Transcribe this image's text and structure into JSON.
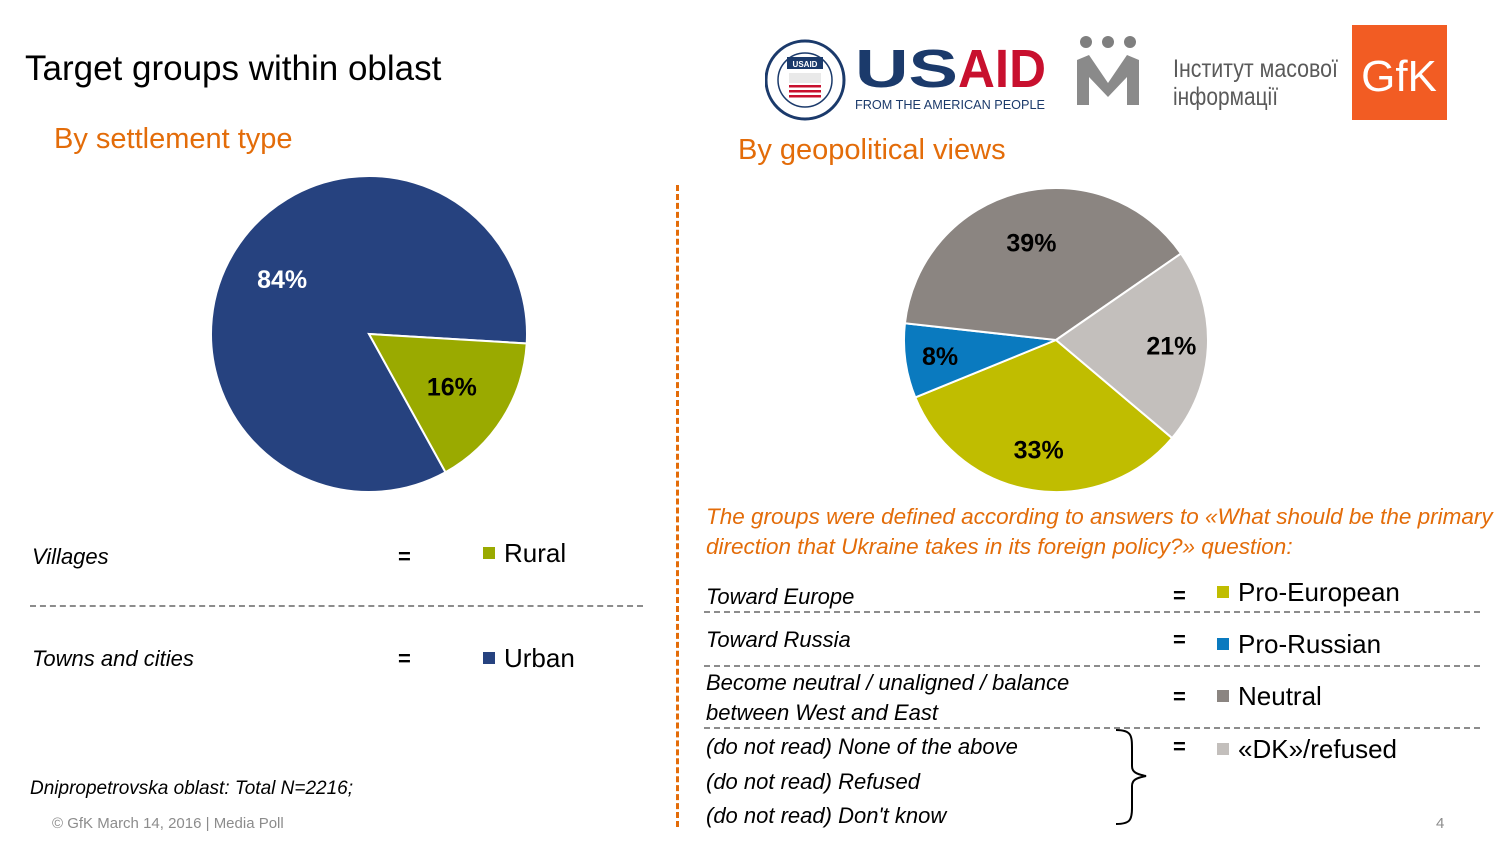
{
  "title": "Target groups within oblast",
  "logos": {
    "seal_text": "UNITED STATES AGENCY · INTERNATIONAL DEVELOPMENT",
    "seal_inner": "USAID",
    "usaid_wordmark": "USAID",
    "usaid_tagline": "FROM THE AMERICAN PEOPLE",
    "imi_line1": "Інститут масової",
    "imi_line2": "інформації",
    "gfk": "GfK"
  },
  "left": {
    "subtitle": "By settlement type",
    "rows": [
      {
        "text": "Villages",
        "eq": "=",
        "label": "Rural",
        "color": "#9aaa00"
      },
      {
        "text": "Towns and cities",
        "eq": "=",
        "label": "Urban",
        "color": "#26427f"
      }
    ],
    "base_note": "Dnipropetrovska oblast: Total N=2216;"
  },
  "right": {
    "subtitle": "By geopolitical views",
    "note": "The groups were defined according to answers to «What should be the primary direction that Ukraine takes in its foreign policy?» question:",
    "rows": [
      {
        "text": "Toward Europe",
        "eq": "=",
        "label": "Pro-European",
        "color": "#c0bd00"
      },
      {
        "text": "Toward Russia",
        "eq": "=",
        "label": "Pro-Russian",
        "color": "#0a7abf"
      },
      {
        "text": "Become neutral / unaligned / balance",
        "text2": "between West and East",
        "eq": "=",
        "label": "Neutral",
        "color": "#8b8581"
      }
    ],
    "dk": {
      "lines": [
        "(do not read) None of the above",
        "(do not read) Refused",
        "(do not read) Don't know"
      ],
      "eq": "=",
      "label": "«DK»/refused",
      "color": "#c3bfbc"
    }
  },
  "chart_data": [
    {
      "type": "pie",
      "title": "By settlement type",
      "categories": [
        "Urban",
        "Rural"
      ],
      "values": [
        84,
        16
      ],
      "labels": [
        "84%",
        "16%"
      ],
      "colors": [
        "#26427f",
        "#9aaa00"
      ],
      "label_colors": [
        "#ffffff",
        "#000000"
      ]
    },
    {
      "type": "pie",
      "title": "By geopolitical views",
      "categories": [
        "Pro-European",
        "Pro-Russian",
        "Neutral",
        "«DK»/refused"
      ],
      "values": [
        33,
        8,
        39,
        21
      ],
      "labels": [
        "33%",
        "8%",
        "39%",
        "21%"
      ],
      "colors": [
        "#c0bd00",
        "#0a7abf",
        "#8b8581",
        "#c3bfbc"
      ],
      "label_colors": [
        "#000000",
        "#000000",
        "#000000",
        "#000000"
      ]
    }
  ],
  "footer": "© GfK March 14, 2016 | Media Poll",
  "page_number": "4"
}
